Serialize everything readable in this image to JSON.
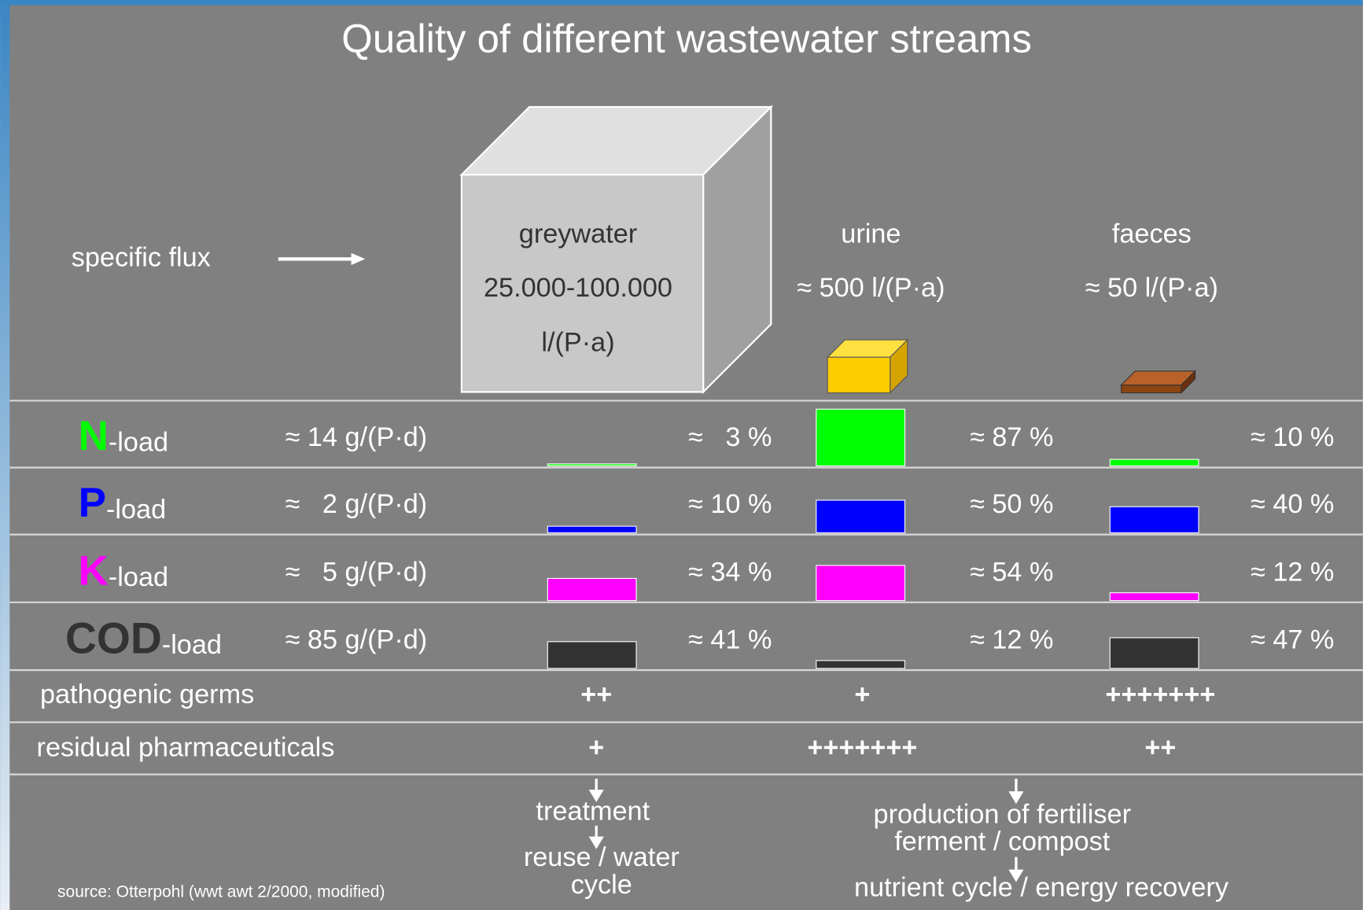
{
  "title": "Quality of different wastewater streams",
  "flux_label": "specific flux",
  "streams": [
    {
      "name": "greywater",
      "flux": [
        "25.000-100.000",
        "l/(P·a)"
      ]
    },
    {
      "name": "urine",
      "flux": [
        "≈ 500  l/(P·a)"
      ]
    },
    {
      "name": "faeces",
      "flux": [
        "≈ 50  l/(P·a)"
      ]
    }
  ],
  "loads": [
    {
      "letter": "N",
      "suffix": "-load",
      "color": "#00ff00",
      "total": "≈ 14 g/(P·d)",
      "values": [
        3,
        87,
        10
      ],
      "value_labels": [
        "≈   3 %",
        "≈ 87 %",
        "≈ 10 %"
      ]
    },
    {
      "letter": "P",
      "suffix": "-load",
      "color": "#0000ff",
      "total": "≈   2 g/(P·d)",
      "values": [
        10,
        50,
        40
      ],
      "value_labels": [
        "≈ 10 %",
        "≈ 50 %",
        "≈ 40 %"
      ]
    },
    {
      "letter": "K",
      "suffix": "-load",
      "color": "#ff00ff",
      "total": "≈   5 g/(P·d)",
      "values": [
        34,
        54,
        12
      ],
      "value_labels": [
        "≈ 34 %",
        "≈ 54 %",
        "≈ 12 %"
      ]
    },
    {
      "letter": "COD",
      "suffix": "-load",
      "color": "#333333",
      "total": "≈ 85 g/(P·d)",
      "values": [
        41,
        12,
        47
      ],
      "value_labels": [
        "≈ 41 %",
        "≈ 12 %",
        "≈ 47 %"
      ]
    }
  ],
  "ratings": [
    {
      "label": "pathogenic germs",
      "values": [
        "++",
        "+",
        "+++++++"
      ]
    },
    {
      "label": "residual pharmaceuticals",
      "values": [
        "+",
        "+++++++",
        "++"
      ]
    }
  ],
  "outcomes": {
    "greywater": [
      "treatment",
      "reuse / water",
      "cycle"
    ],
    "nutrients": [
      "production of fertiliser",
      "ferment / compost",
      "nutrient cycle / energy recovery"
    ]
  },
  "source": "source: Otterpohl (wwt awt 2/2000, modified)"
}
